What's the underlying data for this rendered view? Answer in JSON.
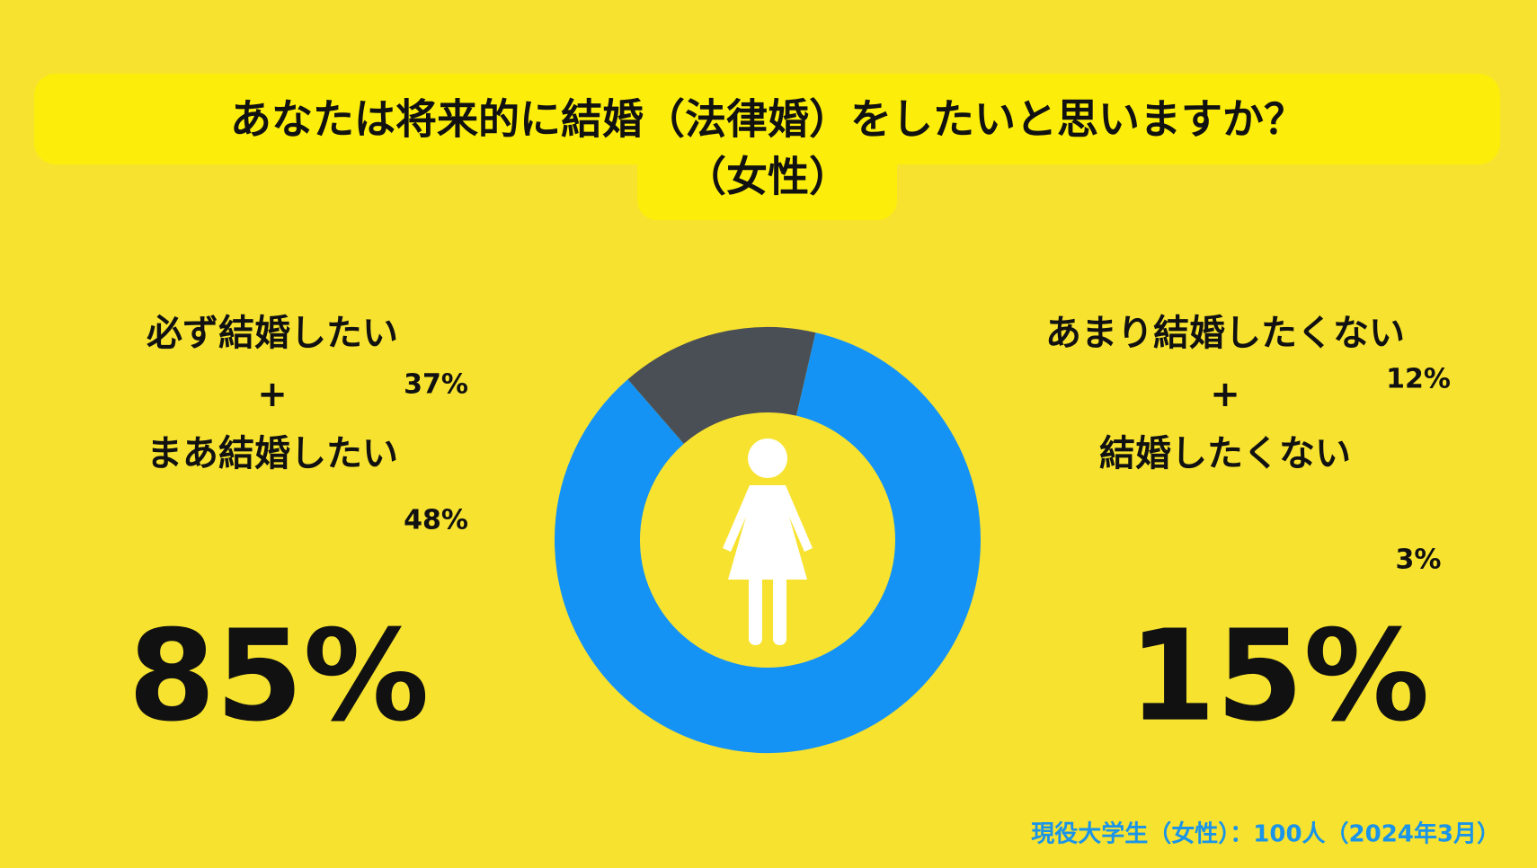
{
  "chart_data": {
    "type": "donut",
    "title": "あなたは将来的に結婚（法律婚）をしたいと思いますか？",
    "subtitle": "（女性）",
    "segments": [
      {
        "items": [
          {
            "name": "必ず結婚したい",
            "value": 37,
            "label": "37%"
          },
          {
            "name": "まあ結婚したい",
            "value": 48,
            "label": "48%"
          }
        ],
        "joiner": "+",
        "value": 85,
        "value_label": "85%",
        "color": "#1593f5"
      },
      {
        "items": [
          {
            "name": "あまり結婚したくない",
            "value": 12,
            "label": "12%"
          },
          {
            "name": "結婚したくない",
            "value": 3,
            "label": "3%"
          }
        ],
        "joiner": "+",
        "value": 15,
        "value_label": "15%",
        "color": "#4a4f55"
      }
    ],
    "footnote": "現役大学生（女性）：100人（2024年3月）",
    "footnote_color": "#1a94e8"
  }
}
